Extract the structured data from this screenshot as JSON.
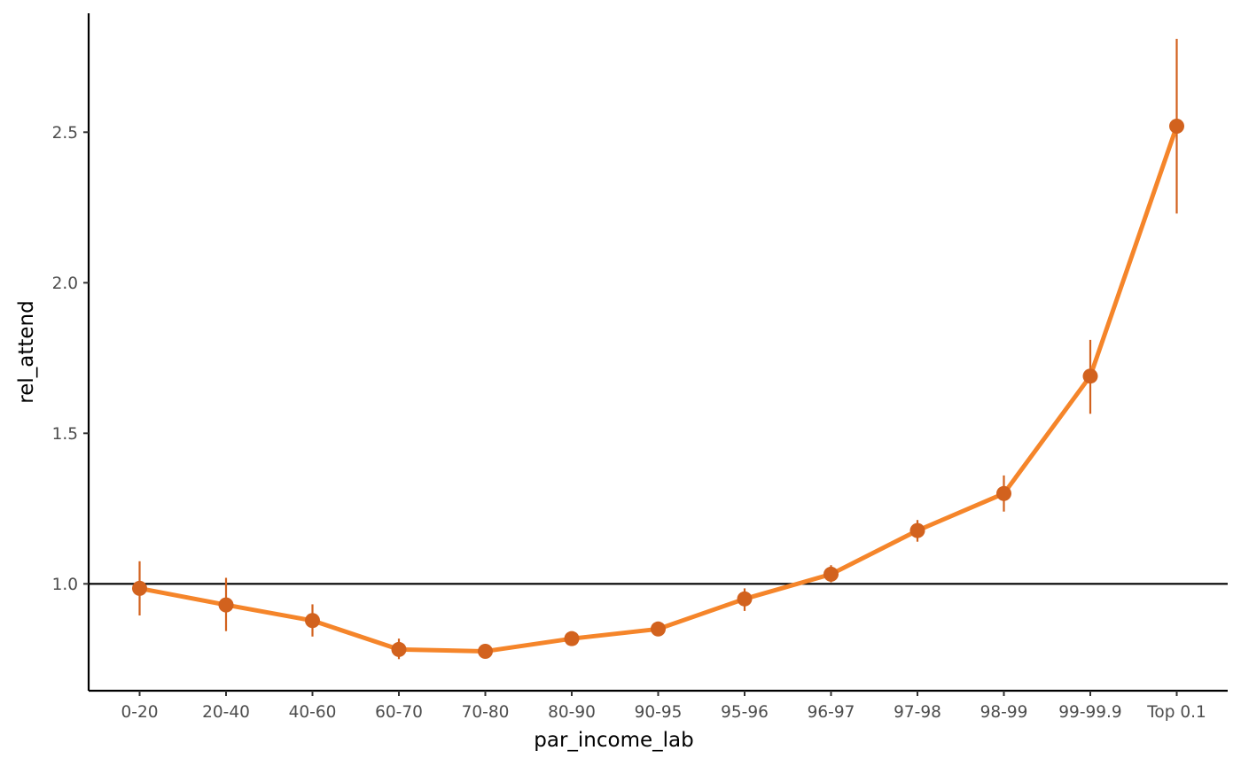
{
  "chart_data": {
    "type": "line",
    "xlabel": "par_income_lab",
    "ylabel": "rel_attend",
    "categories": [
      "0-20",
      "20-40",
      "40-60",
      "60-70",
      "70-80",
      "80-90",
      "90-95",
      "95-96",
      "96-97",
      "97-98",
      "98-99",
      "99-99.9",
      "Top 0.1"
    ],
    "values": [
      0.985,
      0.93,
      0.878,
      0.782,
      0.776,
      0.818,
      0.85,
      0.95,
      1.032,
      1.177,
      1.3,
      1.69,
      2.52
    ],
    "error_low": [
      0.895,
      0.843,
      0.825,
      0.75,
      0.76,
      0.805,
      0.835,
      0.91,
      1.005,
      1.14,
      1.24,
      1.565,
      2.23
    ],
    "error_high": [
      1.075,
      1.02,
      0.932,
      0.818,
      0.792,
      0.83,
      0.865,
      0.985,
      1.062,
      1.212,
      1.36,
      1.81,
      2.81
    ],
    "y_ticks": [
      "1.0",
      "1.5",
      "2.0",
      "2.5"
    ],
    "y_tick_values": [
      1.0,
      1.5,
      2.0,
      2.5
    ],
    "ylim": [
      0.645,
      2.895
    ],
    "reference_line": 1.0,
    "grid": false,
    "colors": {
      "line": "#F5852A",
      "points": "#D2621E",
      "errorbars": "#D2621E",
      "reference": "#000000"
    }
  }
}
